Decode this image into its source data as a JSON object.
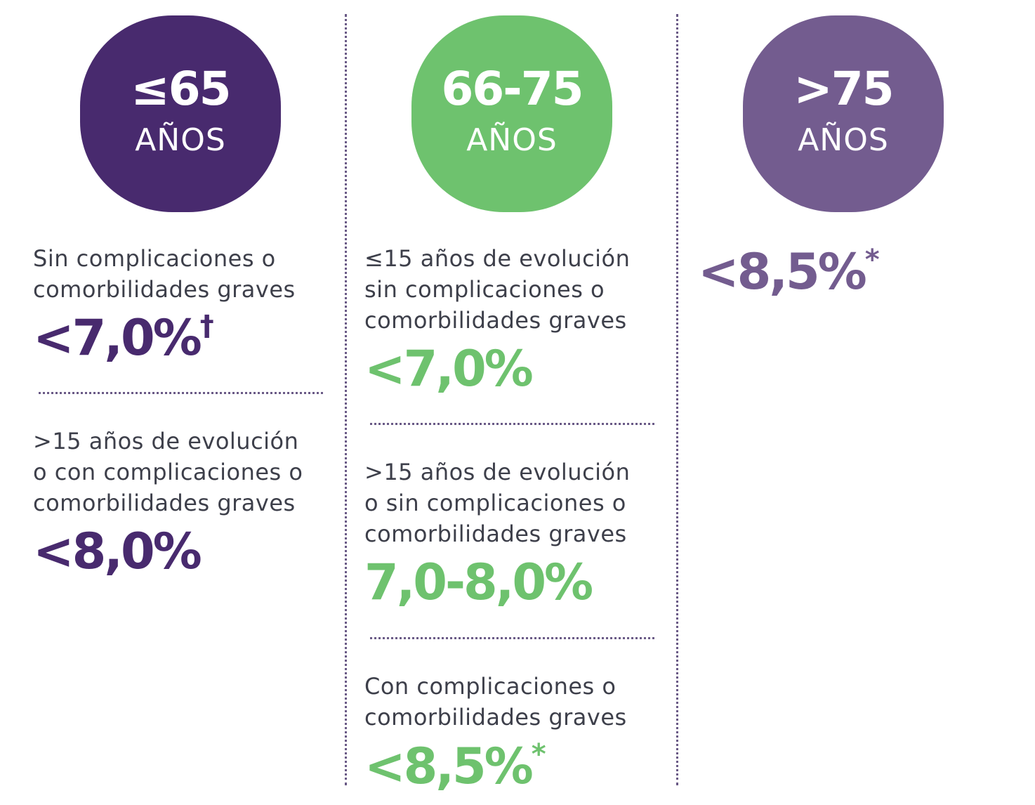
{
  "colors": {
    "dark_purple": "#482a6e",
    "green": "#6ec26e",
    "light_purple": "#735c8f",
    "text": "#3d3f4a",
    "divider": "#6a5a86"
  },
  "columns": [
    {
      "bubble": {
        "number": "≤65",
        "unit": "AÑOS",
        "color": "#482a6e"
      },
      "rows": [
        {
          "description": [
            "Sin complicaciones o",
            "comorbilidades graves"
          ],
          "target": "<7,0%",
          "mark": "†"
        },
        {
          "description": [
            ">15 años de evolución",
            "o con complicaciones o",
            "comorbilidades graves"
          ],
          "target": "<8,0%",
          "mark": ""
        }
      ]
    },
    {
      "bubble": {
        "number": "66-75",
        "unit": "AÑOS",
        "color": "#6ec26e"
      },
      "rows": [
        {
          "description": [
            "≤15 años de evolución",
            "sin complicaciones o",
            "comorbilidades graves"
          ],
          "target": "<7,0%",
          "mark": ""
        },
        {
          "description": [
            ">15 años de evolución",
            "o sin complicaciones o",
            "comorbilidades graves"
          ],
          "target": "7,0-8,0%",
          "mark": ""
        },
        {
          "description": [
            "Con complicaciones o",
            "comorbilidades graves"
          ],
          "target": "<8,5%",
          "mark": "*"
        }
      ]
    },
    {
      "bubble": {
        "number": ">75",
        "unit": "AÑOS",
        "color": "#735c8f"
      },
      "rows": [
        {
          "target": "<8,5%",
          "mark": "*"
        }
      ]
    }
  ]
}
